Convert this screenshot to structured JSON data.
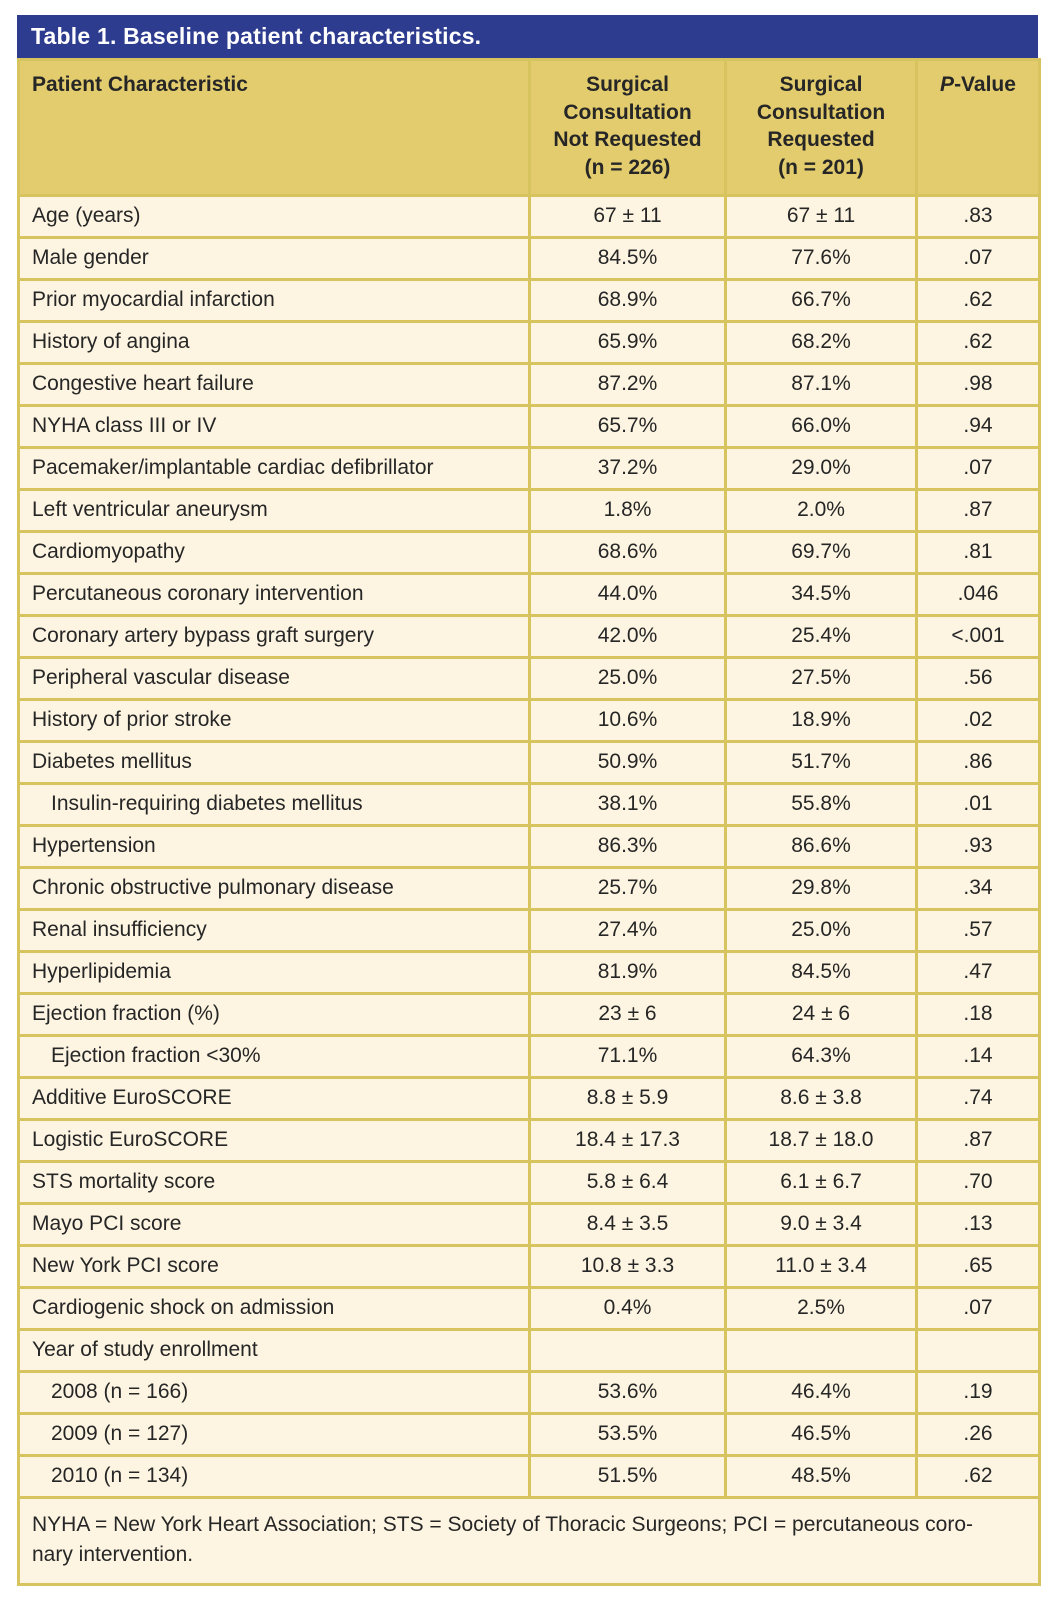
{
  "title": "Table 1. Baseline patient characteristics.",
  "colors": {
    "title_bar": "#2D3C8F",
    "header_bg": "#E3CC6D",
    "row_bg": "#FDF5E2",
    "border": "#D8C45F",
    "title_text": "#FFFFFF",
    "body_text": "#262626"
  },
  "table": {
    "columns": {
      "characteristic": "Patient Characteristic",
      "group1": "Surgical\nConsultation\nNot Requested\n(n = 226)",
      "group2": "Surgical\nConsultation\nRequested\n(n = 201)",
      "p_italic": "P",
      "p_rest": "-Value"
    },
    "rows": [
      {
        "label": "Age (years)",
        "v1": "67 ± 11",
        "v2": "67 ± 11",
        "p": ".83",
        "indent": false
      },
      {
        "label": "Male gender",
        "v1": "84.5%",
        "v2": "77.6%",
        "p": ".07",
        "indent": false
      },
      {
        "label": "Prior myocardial infarction",
        "v1": "68.9%",
        "v2": "66.7%",
        "p": ".62",
        "indent": false
      },
      {
        "label": "History of angina",
        "v1": "65.9%",
        "v2": "68.2%",
        "p": ".62",
        "indent": false
      },
      {
        "label": "Congestive heart failure",
        "v1": "87.2%",
        "v2": "87.1%",
        "p": ".98",
        "indent": false
      },
      {
        "label": "NYHA class III or IV",
        "v1": "65.7%",
        "v2": "66.0%",
        "p": ".94",
        "indent": false
      },
      {
        "label": "Pacemaker/implantable cardiac defibrillator",
        "v1": "37.2%",
        "v2": "29.0%",
        "p": ".07",
        "indent": false
      },
      {
        "label": "Left ventricular aneurysm",
        "v1": "1.8%",
        "v2": "2.0%",
        "p": ".87",
        "indent": false
      },
      {
        "label": "Cardiomyopathy",
        "v1": "68.6%",
        "v2": "69.7%",
        "p": ".81",
        "indent": false
      },
      {
        "label": "Percutaneous coronary intervention",
        "v1": "44.0%",
        "v2": "34.5%",
        "p": ".046",
        "indent": false
      },
      {
        "label": "Coronary artery bypass graft surgery",
        "v1": "42.0%",
        "v2": "25.4%",
        "p": "<.001",
        "indent": false
      },
      {
        "label": "Peripheral vascular disease",
        "v1": "25.0%",
        "v2": "27.5%",
        "p": ".56",
        "indent": false
      },
      {
        "label": "History of prior stroke",
        "v1": "10.6%",
        "v2": "18.9%",
        "p": ".02",
        "indent": false
      },
      {
        "label": "Diabetes mellitus",
        "v1": "50.9%",
        "v2": "51.7%",
        "p": ".86",
        "indent": false
      },
      {
        "label": "Insulin-requiring diabetes mellitus",
        "v1": "38.1%",
        "v2": "55.8%",
        "p": ".01",
        "indent": true
      },
      {
        "label": "Hypertension",
        "v1": "86.3%",
        "v2": "86.6%",
        "p": ".93",
        "indent": false
      },
      {
        "label": "Chronic obstructive pulmonary disease",
        "v1": "25.7%",
        "v2": "29.8%",
        "p": ".34",
        "indent": false
      },
      {
        "label": "Renal insufficiency",
        "v1": "27.4%",
        "v2": "25.0%",
        "p": ".57",
        "indent": false
      },
      {
        "label": "Hyperlipidemia",
        "v1": "81.9%",
        "v2": "84.5%",
        "p": ".47",
        "indent": false
      },
      {
        "label": "Ejection fraction (%)",
        "v1": "23 ± 6",
        "v2": "24 ± 6",
        "p": ".18",
        "indent": false
      },
      {
        "label": "Ejection fraction <30%",
        "v1": "71.1%",
        "v2": "64.3%",
        "p": ".14",
        "indent": true
      },
      {
        "label": "Additive EuroSCORE",
        "v1": "8.8 ± 5.9",
        "v2": "8.6 ± 3.8",
        "p": ".74",
        "indent": false
      },
      {
        "label": "Logistic EuroSCORE",
        "v1": "18.4 ± 17.3",
        "v2": "18.7 ± 18.0",
        "p": ".87",
        "indent": false
      },
      {
        "label": "STS mortality score",
        "v1": "5.8 ± 6.4",
        "v2": "6.1 ± 6.7",
        "p": ".70",
        "indent": false
      },
      {
        "label": "Mayo PCI score",
        "v1": "8.4 ± 3.5",
        "v2": "9.0 ± 3.4",
        "p": ".13",
        "indent": false
      },
      {
        "label": "New York PCI score",
        "v1": "10.8 ± 3.3",
        "v2": "11.0 ± 3.4",
        "p": ".65",
        "indent": false
      },
      {
        "label": "Cardiogenic shock on admission",
        "v1": "0.4%",
        "v2": "2.5%",
        "p": ".07",
        "indent": false
      },
      {
        "label": "Year of study enrollment",
        "v1": "",
        "v2": "",
        "p": "",
        "indent": false
      },
      {
        "label": "2008 (n = 166)",
        "v1": "53.6%",
        "v2": "46.4%",
        "p": ".19",
        "indent": true
      },
      {
        "label": "2009 (n = 127)",
        "v1": "53.5%",
        "v2": "46.5%",
        "p": ".26",
        "indent": true
      },
      {
        "label": "2010 (n = 134)",
        "v1": "51.5%",
        "v2": "48.5%",
        "p": ".62",
        "indent": true
      }
    ],
    "footnote_line1": "NYHA = New York Heart Association; STS = Society of Thoracic Surgeons; PCI = percutaneous coro-",
    "footnote_line2": "nary intervention."
  }
}
